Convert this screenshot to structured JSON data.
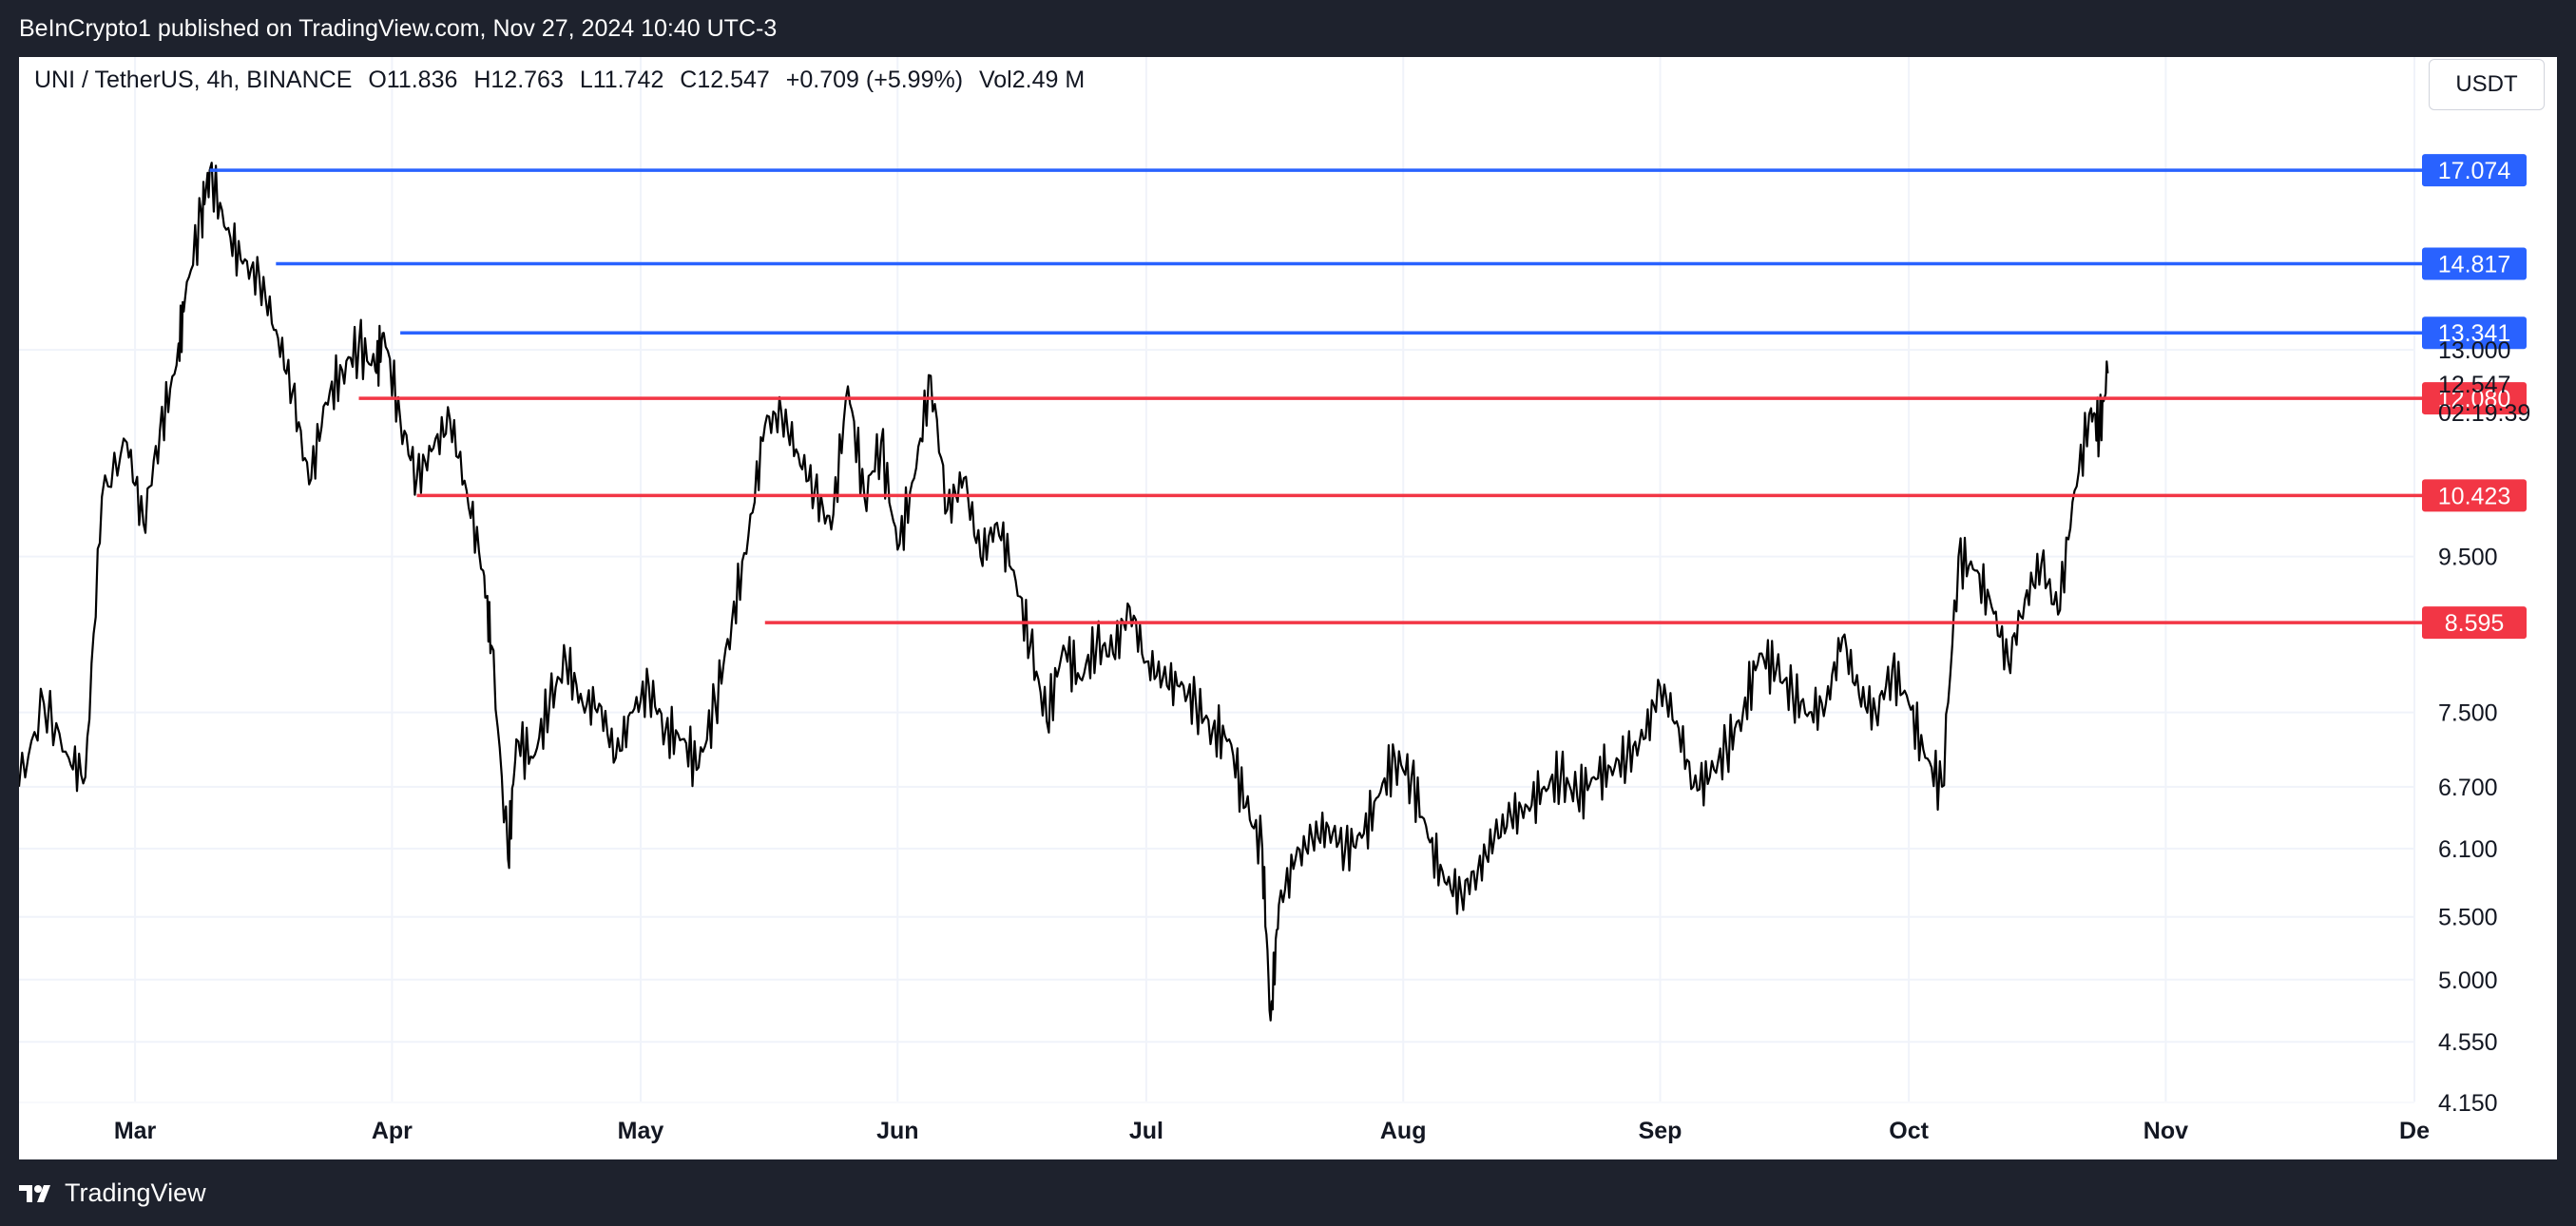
{
  "header": {
    "published": "BeInCrypto1 published on TradingView.com, Nov 27, 2024 10:40 UTC-3"
  },
  "legend": {
    "symbol": "UNI / TetherUS, 4h, BINANCE",
    "open": "O11.836",
    "high": "H12.763",
    "low": "L11.742",
    "close": "C12.547",
    "change": "+0.709 (+5.99%)",
    "volume": "Vol2.49 M"
  },
  "currency_button": "USDT",
  "footer": {
    "brand": "TradingView"
  },
  "colors": {
    "resistance": "#2962ff",
    "support": "#f23645",
    "candles": "#000000",
    "grid": "#f0f3fa"
  },
  "chart_data": {
    "type": "line",
    "scale": "log",
    "series": [
      {
        "values": [
          [
            0,
            6.7
          ],
          [
            3,
            7.6
          ],
          [
            6,
            7.0
          ],
          [
            8,
            6.8
          ],
          [
            10,
            10.4
          ],
          [
            13,
            11.3
          ],
          [
            15,
            10.0
          ],
          [
            17,
            11.5
          ],
          [
            19,
            12.7
          ],
          [
            20,
            14.0
          ],
          [
            22,
            16.0
          ],
          [
            23,
            17.074
          ],
          [
            25,
            15.6
          ],
          [
            27,
            14.817
          ],
          [
            29,
            14.5
          ],
          [
            31,
            13.4
          ],
          [
            33,
            12.2
          ],
          [
            35,
            10.6
          ],
          [
            37,
            12.0
          ],
          [
            39,
            12.6
          ],
          [
            41,
            13.1
          ],
          [
            43,
            12.6
          ],
          [
            44,
            13.341
          ],
          [
            46,
            11.7
          ],
          [
            48,
            10.7
          ],
          [
            50,
            11.2
          ],
          [
            52,
            11.7
          ],
          [
            54,
            10.5
          ],
          [
            56,
            9.3
          ],
          [
            57,
            8.3
          ],
          [
            59,
            6.0
          ],
          [
            60,
            7.2
          ],
          [
            62,
            7.0
          ],
          [
            64,
            7.6
          ],
          [
            66,
            8.1
          ],
          [
            68,
            7.6
          ],
          [
            70,
            7.6
          ],
          [
            72,
            7.0
          ],
          [
            74,
            7.5
          ],
          [
            76,
            7.8
          ],
          [
            78,
            7.3
          ],
          [
            80,
            7.2
          ],
          [
            82,
            6.9
          ],
          [
            84,
            7.6
          ],
          [
            86,
            8.6
          ],
          [
            88,
            9.8
          ],
          [
            90,
            11.6
          ],
          [
            92,
            11.8
          ],
          [
            94,
            11.1
          ],
          [
            96,
            10.5
          ],
          [
            98,
            9.9
          ],
          [
            100,
            12.3
          ],
          [
            102,
            10.4
          ],
          [
            104,
            11.3
          ],
          [
            106,
            9.6
          ],
          [
            108,
            10.7
          ],
          [
            110,
            12.5
          ],
          [
            112,
            10.2
          ],
          [
            114,
            10.7
          ],
          [
            116,
            9.5
          ],
          [
            118,
            10.0
          ],
          [
            120,
            9.3
          ],
          [
            122,
            8.3
          ],
          [
            124,
            7.4
          ],
          [
            126,
            8.3
          ],
          [
            128,
            7.9
          ],
          [
            130,
            8.3
          ],
          [
            132,
            8.2
          ],
          [
            134,
            8.8
          ],
          [
            136,
            8.1
          ],
          [
            138,
            7.9
          ],
          [
            140,
            7.8
          ],
          [
            142,
            7.6
          ],
          [
            144,
            7.3
          ],
          [
            146,
            7.2
          ],
          [
            148,
            6.5
          ],
          [
            150,
            6.1
          ],
          [
            151,
            4.7
          ],
          [
            152,
            5.6
          ],
          [
            154,
            6.0
          ],
          [
            156,
            6.2
          ],
          [
            158,
            6.3
          ],
          [
            160,
            6.1
          ],
          [
            162,
            6.2
          ],
          [
            164,
            6.6
          ],
          [
            166,
            7.0
          ],
          [
            168,
            6.8
          ],
          [
            170,
            6.2
          ],
          [
            172,
            5.8
          ],
          [
            174,
            5.7
          ],
          [
            176,
            5.9
          ],
          [
            178,
            6.2
          ],
          [
            180,
            6.4
          ],
          [
            182,
            6.5
          ],
          [
            184,
            6.7
          ],
          [
            186,
            6.8
          ],
          [
            188,
            6.6
          ],
          [
            190,
            6.8
          ],
          [
            192,
            6.9
          ],
          [
            194,
            7.0
          ],
          [
            196,
            7.2
          ],
          [
            198,
            7.8
          ],
          [
            200,
            7.4
          ],
          [
            202,
            6.7
          ],
          [
            204,
            6.8
          ],
          [
            206,
            7.1
          ],
          [
            208,
            7.5
          ],
          [
            210,
            8.2
          ],
          [
            212,
            8.0
          ],
          [
            214,
            7.7
          ],
          [
            216,
            7.5
          ],
          [
            218,
            7.6
          ],
          [
            220,
            8.4
          ],
          [
            222,
            7.7
          ],
          [
            224,
            7.5
          ],
          [
            226,
            8.0
          ],
          [
            228,
            7.6
          ],
          [
            230,
            7.0
          ],
          [
            232,
            6.7
          ],
          [
            234,
            9.5
          ],
          [
            236,
            9.3
          ],
          [
            238,
            8.8
          ],
          [
            240,
            8.1
          ],
          [
            242,
            8.9
          ],
          [
            244,
            9.4
          ],
          [
            246,
            8.7
          ],
          [
            248,
            10.5
          ],
          [
            250,
            11.9
          ],
          [
            251,
            11.5
          ],
          [
            252,
            12.547
          ]
        ]
      }
    ],
    "levels": [
      {
        "value": 17.074,
        "label": "17.074",
        "kind": "resistance",
        "start": 23
      },
      {
        "value": 14.817,
        "label": "14.817",
        "kind": "resistance",
        "start": 31
      },
      {
        "value": 13.341,
        "label": "13.341",
        "kind": "resistance",
        "start": 46
      },
      {
        "value": 12.08,
        "label": "12.080",
        "kind": "support",
        "start": 41
      },
      {
        "value": 10.423,
        "label": "10.423",
        "kind": "support",
        "start": 48
      },
      {
        "value": 8.595,
        "label": "8.595",
        "kind": "support",
        "start": 90
      }
    ],
    "price_ticks": [
      "13.000",
      "9.500",
      "7.500",
      "6.700",
      "6.100",
      "5.500",
      "5.000",
      "4.550",
      "4.150"
    ],
    "tick_values": [
      13.0,
      9.5,
      7.5,
      6.7,
      6.1,
      5.5,
      5.0,
      4.55,
      4.15
    ],
    "last_price": "12.547",
    "countdown": "02:19:39",
    "x_ticks": [
      "Mar",
      "Apr",
      "May",
      "Jun",
      "Jul",
      "Aug",
      "Sep",
      "Oct",
      "Nov",
      "De"
    ],
    "x_tick_days": [
      14,
      45,
      75,
      106,
      136,
      167,
      198,
      228,
      259,
      289
    ],
    "x_range": [
      0,
      289
    ],
    "y_range": [
      4.15,
      19.0
    ]
  }
}
